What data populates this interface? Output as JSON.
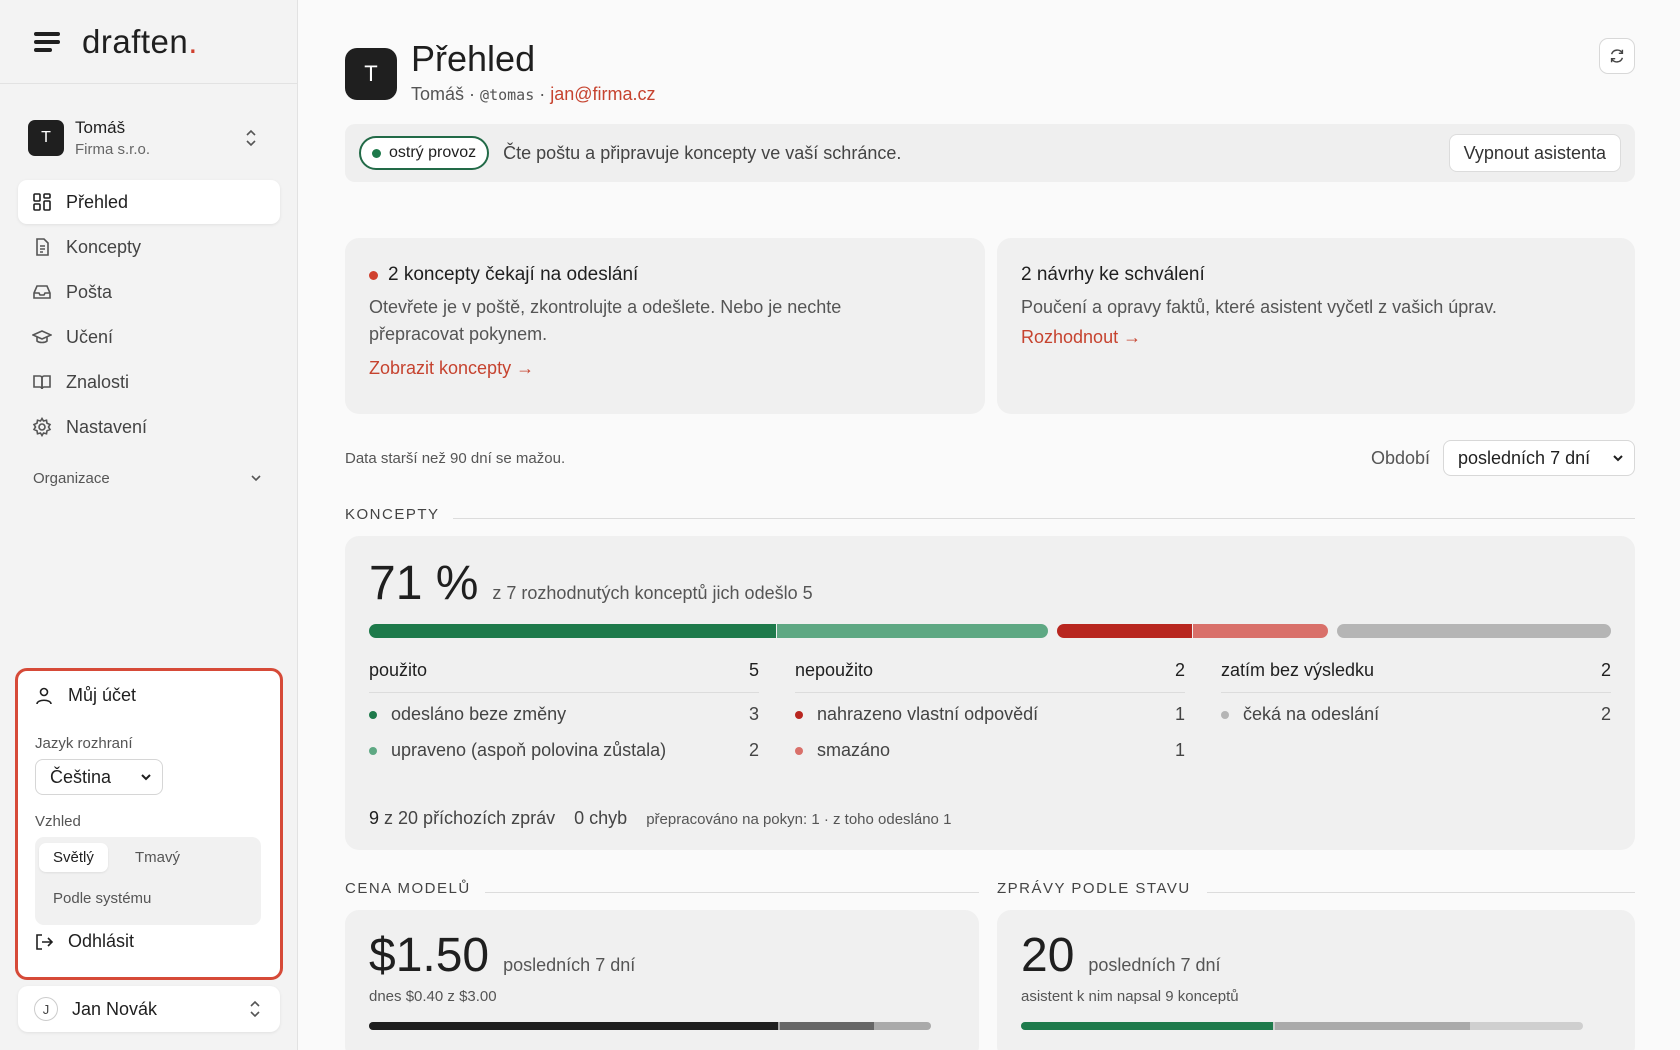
{
  "brand": {
    "logo_text": "draften",
    "logo_dot": "."
  },
  "org": {
    "avatar_letter": "T",
    "name": "Tomáš",
    "company": "Firma s.r.o."
  },
  "nav": {
    "items": [
      {
        "label": "Přehled",
        "icon": "dashboard-icon",
        "active": true
      },
      {
        "label": "Koncepty",
        "icon": "document-icon"
      },
      {
        "label": "Pošta",
        "icon": "inbox-icon"
      },
      {
        "label": "Učení",
        "icon": "graduation-cap-icon"
      },
      {
        "label": "Znalosti",
        "icon": "book-icon"
      },
      {
        "label": "Nastavení",
        "icon": "gear-icon"
      }
    ],
    "section_label": "Organizace"
  },
  "account_menu": {
    "my_account": "Můj účet",
    "language_label": "Jazyk rozhraní",
    "language_value": "Čeština",
    "appearance_label": "Vzhled",
    "theme_light": "Světlý",
    "theme_dark": "Tmavý",
    "theme_system": "Podle systému",
    "logout": "Odhlásit"
  },
  "user": {
    "avatar_letter": "J",
    "name": "Jan Novák"
  },
  "header": {
    "avatar_letter": "T",
    "title": "Přehled",
    "name": "Tomáš",
    "sep": "·",
    "handle": "@tomas",
    "email": "jan@firma.cz"
  },
  "status": {
    "pill": "ostrý provoz",
    "text": "Čte poštu a připravuje koncepty ve vaší schránce.",
    "button": "Vypnout asistenta"
  },
  "cards": {
    "pending": {
      "title": "2 koncepty čekají na odeslání",
      "desc": "Otevřete je v poště, zkontrolujte a odešlete. Nebo je nechte přepracovat pokynem.",
      "link": "Zobrazit koncepty →"
    },
    "proposals": {
      "title": "2 návrhy ke schválení",
      "desc": "Poučení a opravy faktů, které asistent vyčetl z vašich úprav.",
      "link": "Rozhodnout →"
    }
  },
  "retention": "Data starší než 90 dní se mažou.",
  "period": {
    "label": "Období",
    "value": "posledních 7 dní"
  },
  "drafts": {
    "heading": "KONCEPTY",
    "percent": "71 %",
    "percent_value": 71,
    "summary": "z 7 rozhodnutých konceptů jich odešlo 5",
    "groups": [
      {
        "title": "použito",
        "count": "5",
        "rows": [
          {
            "label": "odesláno beze změny",
            "value": "3",
            "color": "#1e7a4b"
          },
          {
            "label": "upraveno (aspoň polovina zůstala)",
            "value": "2",
            "color": "#5ea883"
          }
        ]
      },
      {
        "title": "nepoužito",
        "count": "2",
        "rows": [
          {
            "label": "nahrazeno vlastní odpovědí",
            "value": "1",
            "color": "#b8261f"
          },
          {
            "label": "smazáno",
            "value": "1",
            "color": "#d9706a"
          }
        ]
      },
      {
        "title": "zatím bez výsledku",
        "count": "2",
        "rows": [
          {
            "label": "čeká na odeslání",
            "value": "2",
            "color": "#b5b5b5"
          }
        ]
      }
    ],
    "footer_count": "9",
    "footer_count_rest": "z 20 příchozích zpráv",
    "footer_errors": "0 chyb",
    "footer_note": "přepracováno na pokyn: 1 · z toho odesláno 1"
  },
  "cost": {
    "heading": "CENA MODELŮ",
    "amount": "$1.50",
    "period": "posledních 7 dní",
    "today": "dnes $0.40 z $3.00",
    "bar_fraction_dark": 0.73,
    "bar_fraction_mid": 0.17
  },
  "messages": {
    "heading": "ZPRÁVY PODLE STAVU",
    "count": "20",
    "period": "posledních 7 dní",
    "sub": "asistent k nim napsal 9 konceptů",
    "bar_fraction_green": 0.45,
    "bar_fraction_mid": 0.35
  },
  "colors": {
    "accent": "#c6432f",
    "green": "#1e7a4b",
    "popup_border": "#d64a38"
  }
}
